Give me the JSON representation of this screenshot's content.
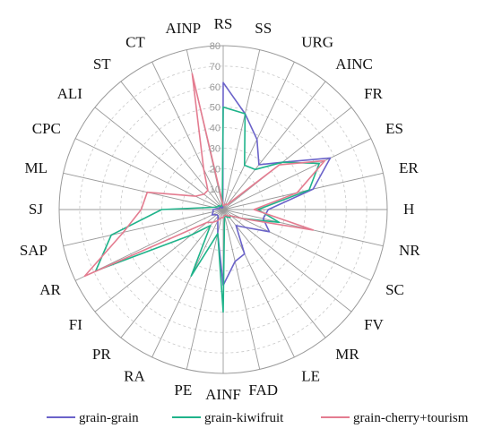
{
  "chart_data": {
    "type": "radar",
    "axes": [
      "RS",
      "SS",
      "URG",
      "AINC",
      "FR",
      "ES",
      "ER",
      "H",
      "NR",
      "SC",
      "FV",
      "MR",
      "LE",
      "FAD",
      "AINF",
      "PE",
      "RA",
      "PR",
      "FI",
      "AR",
      "SAP",
      "SJ",
      "ML",
      "CPC",
      "ALI",
      "ST",
      "CT",
      "AINP"
    ],
    "rlim": [
      0,
      80
    ],
    "ticks": [
      "10",
      "20",
      "30",
      "40",
      "50",
      "60",
      "70",
      "80"
    ],
    "grid": true,
    "legend_position": "bottom",
    "series": [
      {
        "name": "grain-grain",
        "color": "#6b63c9",
        "values": [
          62,
          48,
          38,
          28,
          37,
          58,
          45,
          22,
          20,
          25,
          14,
          10,
          24,
          26,
          37,
          12,
          6,
          4,
          4,
          6,
          5,
          5,
          2,
          2,
          2,
          1,
          1,
          1
        ]
      },
      {
        "name": "grain-kiwifruit",
        "color": "#1fb38a",
        "values": [
          50,
          48,
          24,
          25,
          37,
          52,
          43,
          17,
          28,
          10,
          5,
          5,
          4,
          3,
          50,
          12,
          36,
          10,
          20,
          69,
          56,
          30,
          5,
          3,
          3,
          2,
          2,
          2
        ]
      },
      {
        "name": "grain-cherry+tourism",
        "color": "#e47c90",
        "values": [
          2,
          2,
          3,
          3,
          35,
          55,
          37,
          15,
          45,
          10,
          5,
          4,
          3,
          3,
          4,
          4,
          6,
          8,
          10,
          75,
          50,
          40,
          38,
          15,
          12,
          12,
          22,
          68
        ]
      }
    ]
  }
}
